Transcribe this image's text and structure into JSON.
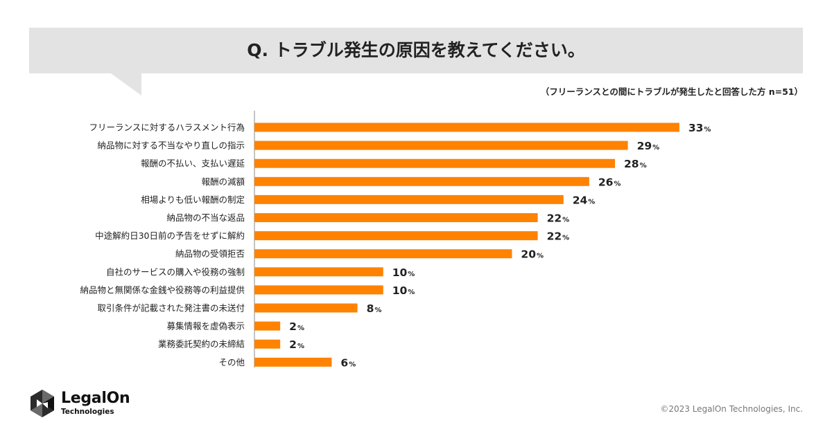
{
  "header": {
    "title": "Q. トラブル発生の原因を教えてください。",
    "note": "（フリーランスとの間にトラブルが発生したと回答した方 n=51）"
  },
  "chart_data": {
    "type": "bar",
    "orientation": "horizontal",
    "title": "Q. トラブル発生の原因を教えてください。",
    "unit": "%",
    "xlim": [
      0,
      35
    ],
    "bar_color": "#ff8200",
    "categories": [
      "フリーランスに対するハラスメント行為",
      "納品物に対する不当なやり直しの指示",
      "報酬の不払い、支払い遅延",
      "報酬の減額",
      "相場よりも低い報酬の制定",
      "納品物の不当な返品",
      "中途解約日30日前の予告をせずに解約",
      "納品物の受領拒否",
      "自社のサービスの購入や役務の強制",
      "納品物と無関係な金銭や役務等の利益提供",
      "取引条件が記載された発注書の未送付",
      "募集情報を虚偽表示",
      "業務委託契約の未締結",
      "その他"
    ],
    "values": [
      33,
      29,
      28,
      26,
      24,
      22,
      22,
      20,
      10,
      10,
      8,
      2,
      2,
      6
    ]
  },
  "footer": {
    "logo_name": "LegalOn",
    "logo_sub": "Technologies",
    "copyright": "©2023 LegalOn Technologies, Inc."
  }
}
